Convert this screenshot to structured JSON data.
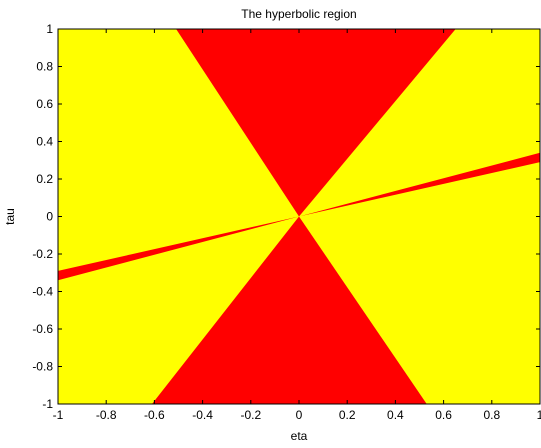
{
  "chart_data": {
    "type": "heatmap",
    "title": "The hyperbolic region",
    "xlabel": "eta",
    "ylabel": "tau",
    "xlim": [
      -1,
      1
    ],
    "ylim": [
      -1,
      1
    ],
    "xticks": [
      "-1",
      "-0.8",
      "-0.6",
      "-0.4",
      "-0.2",
      "0",
      "0.2",
      "0.4",
      "0.6",
      "0.8",
      "1"
    ],
    "yticks": [
      "-1",
      "-0.8",
      "-0.6",
      "-0.4",
      "-0.2",
      "0",
      "0.2",
      "0.4",
      "0.6",
      "0.8",
      "1"
    ],
    "background_color": "#ffff00",
    "region_color": "#ff0000",
    "grid": false,
    "regions": [
      {
        "name": "upper-wedge",
        "points": [
          [
            -0.51,
            1
          ],
          [
            0.65,
            1
          ],
          [
            0,
            0
          ]
        ]
      },
      {
        "name": "lower-wedge",
        "points": [
          [
            -0.61,
            -1
          ],
          [
            0.53,
            -1
          ],
          [
            0,
            0
          ]
        ]
      },
      {
        "name": "thin-band",
        "points": [
          [
            -1,
            -0.29
          ],
          [
            -1,
            -0.34
          ],
          [
            0,
            0
          ],
          [
            1,
            0.34
          ],
          [
            1,
            0.29
          ]
        ]
      }
    ]
  }
}
